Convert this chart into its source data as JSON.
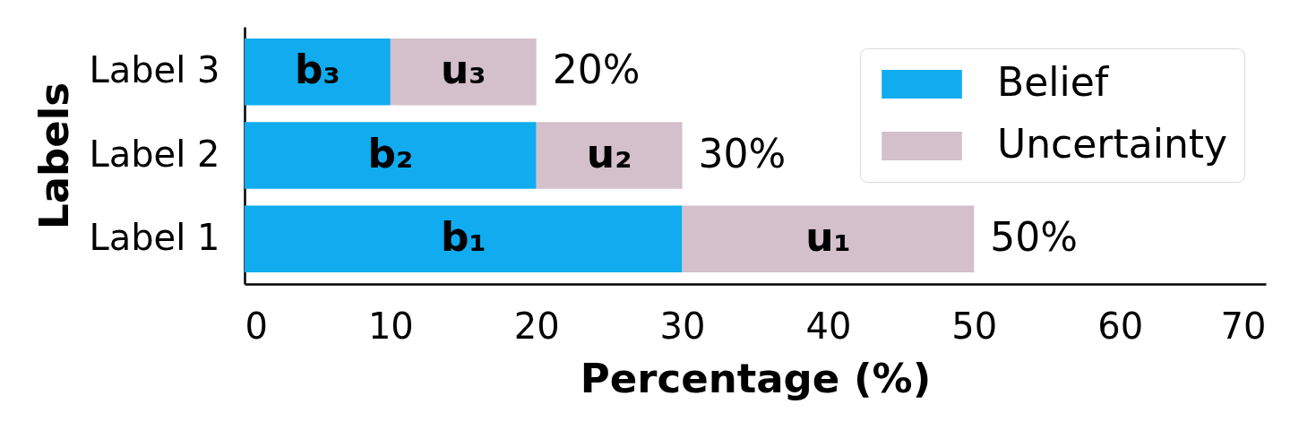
{
  "chart_data": {
    "type": "bar",
    "orientation": "horizontal",
    "stacked": true,
    "xlabel": "Percentage (%)",
    "ylabel": "Labels",
    "categories": [
      "Label 3",
      "Label 2",
      "Label 1"
    ],
    "series": [
      {
        "name": "Belief",
        "color": "#10acef",
        "values": [
          10,
          20,
          30
        ],
        "value_labels": [
          "b₃",
          "b₂",
          "b₁"
        ]
      },
      {
        "name": "Uncertainty",
        "color": "#d3c0ca",
        "values": [
          10,
          10,
          20
        ],
        "value_labels": [
          "u₃",
          "u₂",
          "u₁"
        ]
      }
    ],
    "totals": [
      "20%",
      "30%",
      "50%"
    ],
    "xlim": [
      0,
      70
    ],
    "xticks": [
      0,
      10,
      20,
      30,
      40,
      50,
      60,
      70
    ],
    "grid": false,
    "legend": "top right"
  }
}
